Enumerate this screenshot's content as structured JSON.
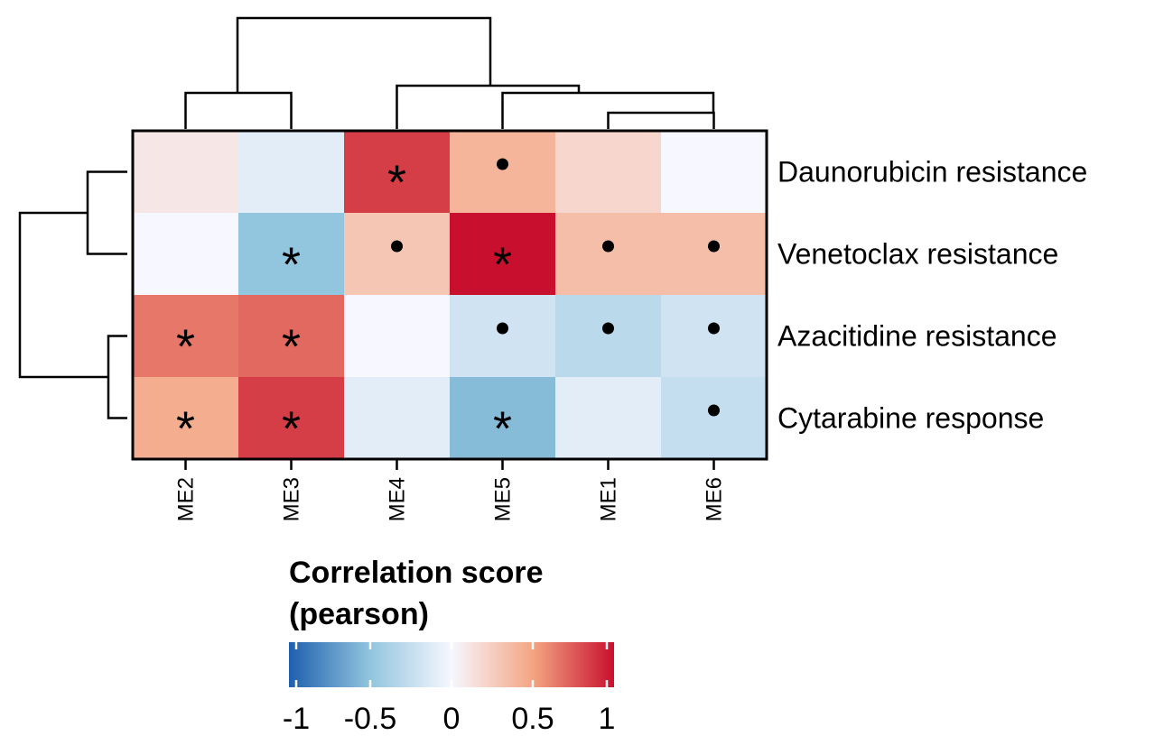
{
  "chart_data": {
    "type": "heatmap",
    "rows": [
      "Daunorubicin resistance",
      "Venetoclax resistance",
      "Azacitidine resistance",
      "Cytarabine response"
    ],
    "columns": [
      "ME2",
      "ME3",
      "ME4",
      "ME5",
      "ME1",
      "ME6"
    ],
    "values": [
      [
        0.1,
        -0.1,
        0.85,
        0.4,
        0.2,
        0.0
      ],
      [
        0.0,
        -0.5,
        0.3,
        1.0,
        0.35,
        0.35
      ],
      [
        0.65,
        0.7,
        0.0,
        -0.2,
        -0.3,
        -0.2
      ],
      [
        0.45,
        0.85,
        -0.1,
        -0.55,
        -0.1,
        -0.25
      ]
    ],
    "significance": [
      [
        "",
        "",
        "*",
        "•",
        "",
        ""
      ],
      [
        "",
        "*",
        "•",
        "*",
        "•",
        "•"
      ],
      [
        "*",
        "*",
        "",
        "•",
        "•",
        "•"
      ],
      [
        "*",
        "*",
        "",
        "*",
        "",
        "•"
      ]
    ],
    "legend": {
      "title_line1": "Correlation score",
      "title_line2": "(pearson)",
      "ticks": [
        -1,
        -0.5,
        0,
        0.5,
        1
      ],
      "tick_labels": [
        "-1",
        "-0.5",
        "0",
        "0.5",
        "1"
      ],
      "range": [
        -1,
        1
      ]
    },
    "colors": {
      "negative": "#2166ac",
      "mid_negative": "#92c5de",
      "zero": "#f7f7ff",
      "mid_positive": "#f4a582",
      "positive": "#c8102e"
    }
  }
}
